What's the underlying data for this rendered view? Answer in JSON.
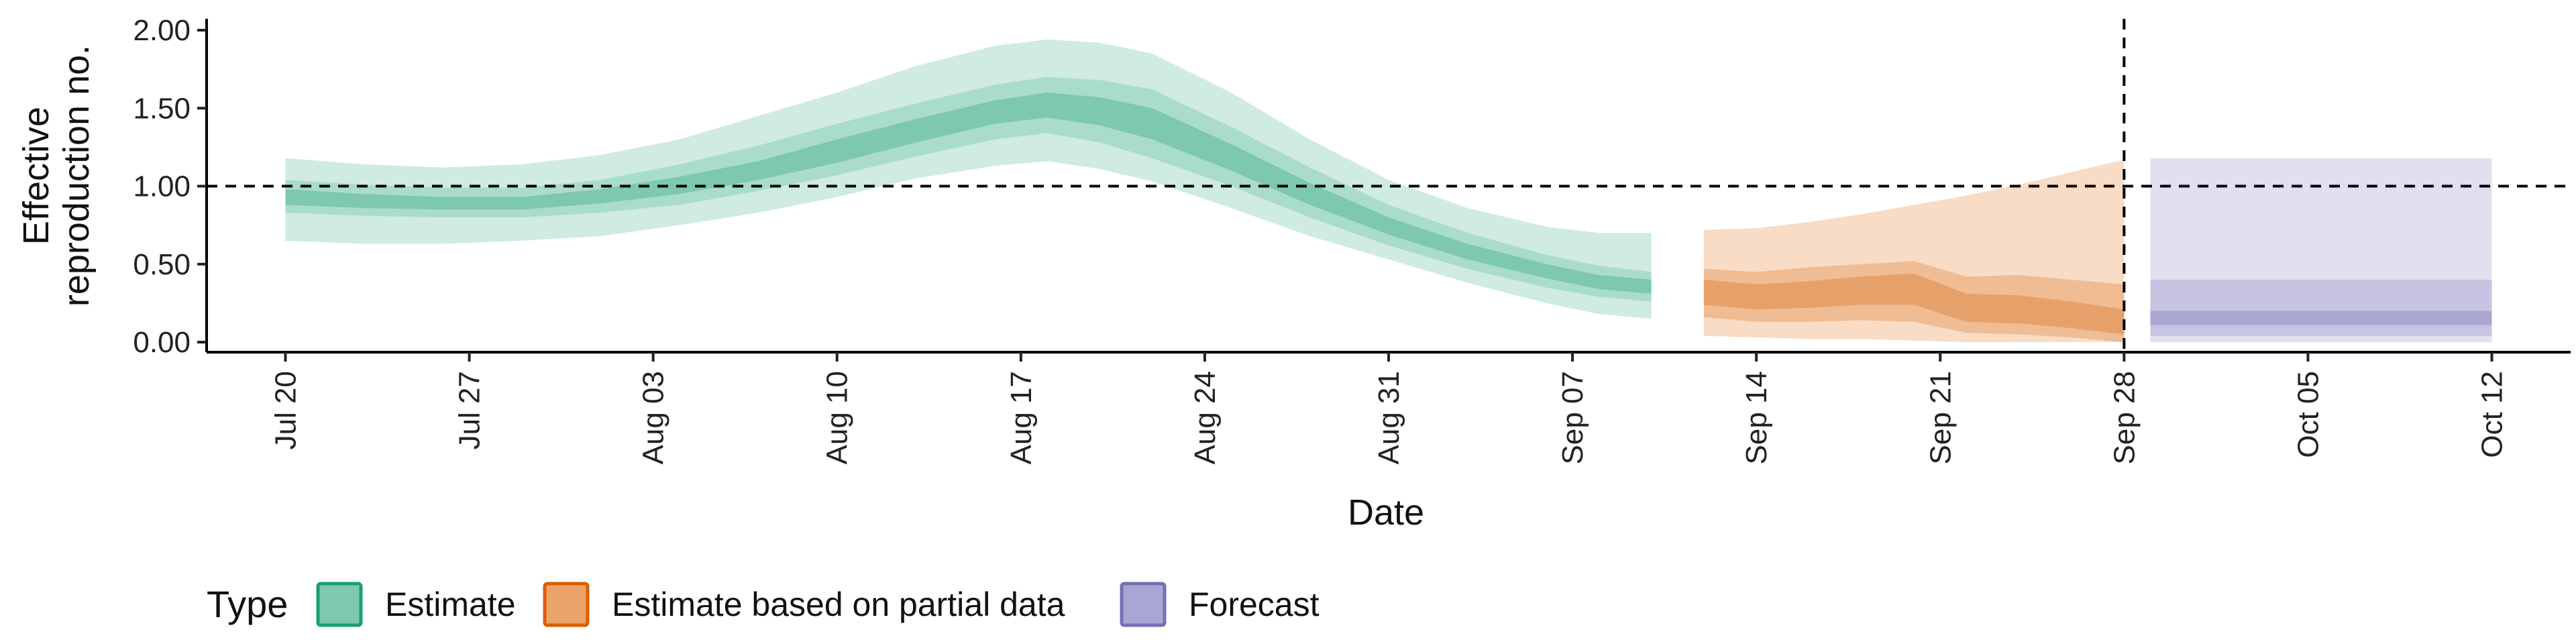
{
  "chart_data": {
    "type": "area",
    "xlabel": "Date",
    "ylabel": [
      "Effective",
      "reproduction no."
    ],
    "ylim": [
      0,
      2
    ],
    "xlim": [
      "2020-07-17",
      "2020-10-15"
    ],
    "y_ticks": [
      0,
      0.5,
      1,
      1.5,
      2
    ],
    "y_tick_labels": [
      "0.00",
      "0.50",
      "1.00",
      "1.50",
      "2.00"
    ],
    "x_ticks": [
      "2020-07-20",
      "2020-07-27",
      "2020-08-03",
      "2020-08-10",
      "2020-08-17",
      "2020-08-24",
      "2020-08-31",
      "2020-09-07",
      "2020-09-14",
      "2020-09-21",
      "2020-09-28",
      "2020-10-05",
      "2020-10-12"
    ],
    "x_tick_labels": [
      "Jul 20",
      "Jul 27",
      "Aug 03",
      "Aug 10",
      "Aug 17",
      "Aug 24",
      "Aug 31",
      "Sep 07",
      "Sep 14",
      "Sep 21",
      "Sep 28",
      "Oct 05",
      "Oct 12"
    ],
    "reference_hline": 1.0,
    "reference_vline": "2020-09-28",
    "legend": {
      "title": "Type",
      "position": "bottom-left",
      "entries": [
        {
          "label": "Estimate",
          "fill": "#7dc8ae",
          "stroke": "#1b9e77"
        },
        {
          "label": "Estimate based on partial data",
          "fill": "#eba36a",
          "stroke": "#d95f02"
        },
        {
          "label": "Forecast",
          "fill": "#a9a6d3",
          "stroke": "#7570b3"
        }
      ]
    },
    "series": [
      {
        "name": "Estimate",
        "color": "#1b9e77",
        "x": [
          "2020-07-20",
          "2020-07-23",
          "2020-07-26",
          "2020-07-29",
          "2020-08-01",
          "2020-08-04",
          "2020-08-07",
          "2020-08-10",
          "2020-08-13",
          "2020-08-16",
          "2020-08-18",
          "2020-08-20",
          "2020-08-22",
          "2020-08-25",
          "2020-08-28",
          "2020-08-31",
          "2020-09-03",
          "2020-09-06",
          "2020-09-08",
          "2020-09-10"
        ],
        "median": [
          0.93,
          0.9,
          0.88,
          0.88,
          0.93,
          1.0,
          1.1,
          1.22,
          1.35,
          1.47,
          1.52,
          1.48,
          1.4,
          1.18,
          0.95,
          0.74,
          0.58,
          0.45,
          0.38,
          0.35
        ],
        "ci50_low": [
          0.88,
          0.86,
          0.85,
          0.85,
          0.89,
          0.95,
          1.04,
          1.15,
          1.28,
          1.4,
          1.44,
          1.39,
          1.3,
          1.1,
          0.88,
          0.69,
          0.53,
          0.41,
          0.34,
          0.31
        ],
        "ci50_high": [
          0.98,
          0.95,
          0.93,
          0.93,
          0.98,
          1.06,
          1.16,
          1.3,
          1.43,
          1.55,
          1.6,
          1.57,
          1.5,
          1.27,
          1.02,
          0.8,
          0.63,
          0.5,
          0.43,
          0.4
        ],
        "ci90_low": [
          0.83,
          0.81,
          0.8,
          0.8,
          0.83,
          0.88,
          0.97,
          1.07,
          1.19,
          1.3,
          1.34,
          1.28,
          1.18,
          1.0,
          0.8,
          0.62,
          0.47,
          0.35,
          0.29,
          0.26
        ],
        "ci90_high": [
          1.04,
          1.01,
          0.99,
          0.99,
          1.04,
          1.14,
          1.26,
          1.4,
          1.53,
          1.65,
          1.7,
          1.68,
          1.62,
          1.38,
          1.12,
          0.88,
          0.7,
          0.56,
          0.49,
          0.45
        ],
        "ci_low": [
          0.65,
          0.63,
          0.63,
          0.65,
          0.68,
          0.75,
          0.83,
          0.93,
          1.05,
          1.13,
          1.16,
          1.11,
          1.03,
          0.86,
          0.68,
          0.53,
          0.38,
          0.25,
          0.18,
          0.15
        ],
        "ci_high": [
          1.18,
          1.14,
          1.12,
          1.14,
          1.2,
          1.3,
          1.45,
          1.6,
          1.77,
          1.9,
          1.94,
          1.92,
          1.85,
          1.6,
          1.3,
          1.04,
          0.86,
          0.74,
          0.7,
          0.7
        ]
      },
      {
        "name": "Estimate based on partial data",
        "color": "#d95f02",
        "x": [
          "2020-09-12",
          "2020-09-14",
          "2020-09-16",
          "2020-09-18",
          "2020-09-20",
          "2020-09-22",
          "2020-09-24",
          "2020-09-26",
          "2020-09-28"
        ],
        "median": [
          0.32,
          0.29,
          0.3,
          0.33,
          0.34,
          0.22,
          0.21,
          0.17,
          0.13
        ],
        "ci50_low": [
          0.24,
          0.21,
          0.22,
          0.24,
          0.24,
          0.13,
          0.12,
          0.09,
          0.05
        ],
        "ci50_high": [
          0.4,
          0.37,
          0.39,
          0.42,
          0.44,
          0.31,
          0.3,
          0.26,
          0.21
        ],
        "ci90_low": [
          0.16,
          0.13,
          0.13,
          0.14,
          0.13,
          0.06,
          0.05,
          0.03,
          0.0
        ],
        "ci90_high": [
          0.47,
          0.45,
          0.48,
          0.5,
          0.52,
          0.42,
          0.43,
          0.4,
          0.37
        ],
        "ci_low": [
          0.04,
          0.03,
          0.02,
          0.02,
          0.01,
          0.0,
          0.0,
          0.0,
          0.0
        ],
        "ci_high": [
          0.72,
          0.73,
          0.77,
          0.82,
          0.88,
          0.94,
          1.01,
          1.09,
          1.17
        ]
      },
      {
        "name": "Forecast",
        "color": "#7570b3",
        "x": [
          "2020-09-29",
          "2020-10-12"
        ],
        "median": [
          0.17,
          0.17
        ],
        "ci50_low": [
          0.11,
          0.11
        ],
        "ci50_high": [
          0.2,
          0.2
        ],
        "ci90_low": [
          0.04,
          0.04
        ],
        "ci90_high": [
          0.4,
          0.4
        ],
        "ci_low": [
          0.0,
          0.0
        ],
        "ci_high": [
          1.18,
          1.18
        ]
      }
    ]
  }
}
